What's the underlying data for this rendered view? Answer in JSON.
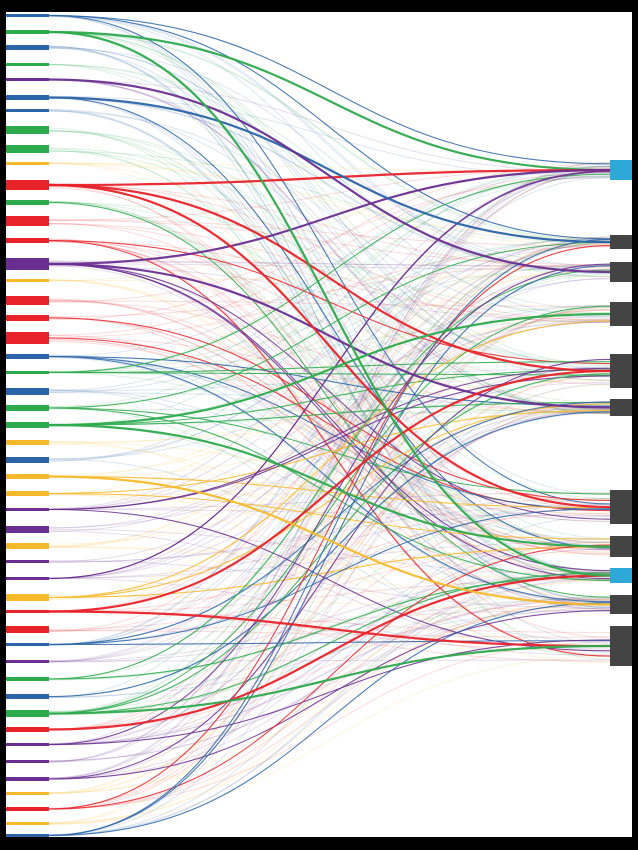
{
  "diagram": {
    "type": "sankey-alluvial",
    "colors": {
      "blue": "#2b64a8",
      "green": "#2eaa4e",
      "purple": "#6a2f91",
      "red": "#e8232a",
      "yellow": "#f6b92b",
      "cyan": "#2ea8d6",
      "dark": "#444444",
      "background": "#ffffff",
      "border": "#000000"
    },
    "left_nodes": [
      {
        "color": "blue"
      },
      {
        "color": "green"
      },
      {
        "color": "blue"
      },
      {
        "color": "green"
      },
      {
        "color": "purple"
      },
      {
        "color": "blue"
      },
      {
        "color": "blue"
      },
      {
        "color": "green"
      },
      {
        "color": "green"
      },
      {
        "color": "yellow"
      },
      {
        "color": "red"
      },
      {
        "color": "green"
      },
      {
        "color": "red"
      },
      {
        "color": "red"
      },
      {
        "color": "purple"
      },
      {
        "color": "yellow"
      },
      {
        "color": "red"
      },
      {
        "color": "red"
      },
      {
        "color": "red"
      },
      {
        "color": "blue"
      },
      {
        "color": "green"
      },
      {
        "color": "blue"
      },
      {
        "color": "green"
      },
      {
        "color": "green"
      },
      {
        "color": "yellow"
      },
      {
        "color": "blue"
      },
      {
        "color": "yellow"
      },
      {
        "color": "yellow"
      },
      {
        "color": "purple"
      },
      {
        "color": "purple"
      },
      {
        "color": "yellow"
      },
      {
        "color": "purple"
      },
      {
        "color": "purple"
      },
      {
        "color": "yellow"
      },
      {
        "color": "red"
      },
      {
        "color": "red"
      },
      {
        "color": "blue"
      },
      {
        "color": "purple"
      },
      {
        "color": "green"
      },
      {
        "color": "blue"
      },
      {
        "color": "green"
      },
      {
        "color": "red"
      },
      {
        "color": "purple"
      },
      {
        "color": "purple"
      },
      {
        "color": "purple"
      },
      {
        "color": "yellow"
      },
      {
        "color": "red"
      },
      {
        "color": "yellow"
      },
      {
        "color": "blue"
      }
    ],
    "right_nodes": [
      {
        "color": "cyan"
      },
      {
        "color": "dark"
      },
      {
        "color": "dark"
      },
      {
        "color": "dark"
      },
      {
        "color": "dark"
      },
      {
        "color": "dark"
      },
      {
        "color": "dark"
      },
      {
        "color": "dark"
      },
      {
        "color": "cyan"
      },
      {
        "color": "dark"
      },
      {
        "color": "dark"
      }
    ],
    "strong_links": [
      {
        "source": 1,
        "target": 0,
        "color": "green"
      },
      {
        "source": 10,
        "target": 0,
        "color": "red"
      },
      {
        "source": 14,
        "target": 0,
        "color": "purple"
      },
      {
        "source": 5,
        "target": 1,
        "color": "blue"
      },
      {
        "source": 4,
        "target": 2,
        "color": "purple"
      },
      {
        "source": 10,
        "target": 4,
        "color": "red"
      },
      {
        "source": 14,
        "target": 5,
        "color": "purple"
      },
      {
        "source": 10,
        "target": 6,
        "color": "red"
      },
      {
        "source": 23,
        "target": 7,
        "color": "green"
      },
      {
        "source": 34,
        "target": 4,
        "color": "red"
      },
      {
        "source": 34,
        "target": 10,
        "color": "red"
      },
      {
        "source": 41,
        "target": 8,
        "color": "red"
      },
      {
        "source": 40,
        "target": 10,
        "color": "green"
      },
      {
        "source": 23,
        "target": 3,
        "color": "green"
      },
      {
        "source": 26,
        "target": 9,
        "color": "yellow"
      },
      {
        "source": 1,
        "target": 8,
        "color": "green"
      }
    ]
  }
}
